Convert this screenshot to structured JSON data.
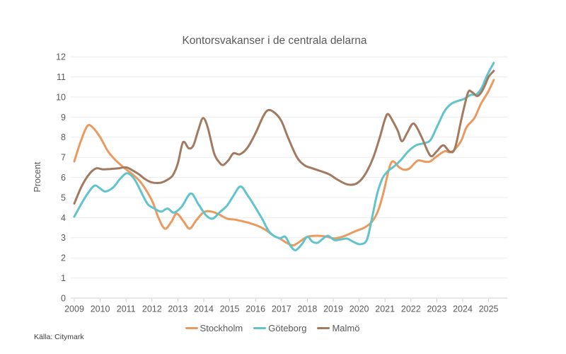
{
  "source_note": "Källa: Citymark",
  "chart_data": {
    "type": "line",
    "title": "Kontorsvakanser i de centrala delarna",
    "xlabel": "",
    "ylabel": "Procent",
    "ylim": [
      0,
      12
    ],
    "y_ticks": [
      0,
      1,
      2,
      3,
      4,
      5,
      6,
      7,
      8,
      9,
      10,
      11,
      12
    ],
    "x_ticks": [
      2009,
      2010,
      2011,
      2012,
      2013,
      2014,
      2015,
      2016,
      2017,
      2018,
      2019,
      2020,
      2021,
      2022,
      2023,
      2024,
      2025
    ],
    "grid": "horizontal",
    "legend_position": "bottom-center",
    "axis_color": "#cfcfcf",
    "gridline_color": "#ebebeb",
    "series": [
      {
        "name": "Stockholm",
        "color": "#EB9A5F",
        "points": [
          [
            2009.0,
            6.8
          ],
          [
            2009.25,
            7.8
          ],
          [
            2009.5,
            8.55
          ],
          [
            2009.7,
            8.5
          ],
          [
            2010.0,
            8.0
          ],
          [
            2010.3,
            7.3
          ],
          [
            2010.6,
            6.85
          ],
          [
            2011.0,
            6.4
          ],
          [
            2011.3,
            6.1
          ],
          [
            2011.6,
            5.7
          ],
          [
            2012.0,
            4.85
          ],
          [
            2012.25,
            4.0
          ],
          [
            2012.5,
            3.45
          ],
          [
            2012.75,
            3.8
          ],
          [
            2012.95,
            4.2
          ],
          [
            2013.2,
            3.85
          ],
          [
            2013.45,
            3.45
          ],
          [
            2013.7,
            3.85
          ],
          [
            2014.0,
            4.27
          ],
          [
            2014.3,
            4.3
          ],
          [
            2014.6,
            4.15
          ],
          [
            2014.9,
            3.95
          ],
          [
            2015.2,
            3.9
          ],
          [
            2015.5,
            3.82
          ],
          [
            2015.8,
            3.72
          ],
          [
            2016.1,
            3.58
          ],
          [
            2016.4,
            3.38
          ],
          [
            2016.7,
            3.1
          ],
          [
            2016.95,
            2.95
          ],
          [
            2017.2,
            2.75
          ],
          [
            2017.45,
            2.62
          ],
          [
            2017.7,
            2.8
          ],
          [
            2018.0,
            3.05
          ],
          [
            2018.4,
            3.1
          ],
          [
            2018.75,
            3.05
          ],
          [
            2019.05,
            2.97
          ],
          [
            2019.35,
            3.05
          ],
          [
            2019.6,
            3.18
          ],
          [
            2019.9,
            3.35
          ],
          [
            2020.2,
            3.5
          ],
          [
            2020.5,
            3.8
          ],
          [
            2020.75,
            4.4
          ],
          [
            2020.95,
            5.3
          ],
          [
            2021.15,
            6.4
          ],
          [
            2021.3,
            6.8
          ],
          [
            2021.55,
            6.5
          ],
          [
            2021.75,
            6.38
          ],
          [
            2021.95,
            6.45
          ],
          [
            2022.15,
            6.72
          ],
          [
            2022.3,
            6.85
          ],
          [
            2022.55,
            6.78
          ],
          [
            2022.75,
            6.8
          ],
          [
            2023.0,
            7.05
          ],
          [
            2023.3,
            7.3
          ],
          [
            2023.5,
            7.25
          ],
          [
            2023.7,
            7.4
          ],
          [
            2023.95,
            7.85
          ],
          [
            2024.15,
            8.5
          ],
          [
            2024.45,
            8.95
          ],
          [
            2024.7,
            9.65
          ],
          [
            2025.0,
            10.3
          ],
          [
            2025.2,
            10.85
          ]
        ]
      },
      {
        "name": "Göteborg",
        "color": "#61C3CB",
        "points": [
          [
            2009.0,
            4.05
          ],
          [
            2009.3,
            4.75
          ],
          [
            2009.6,
            5.35
          ],
          [
            2009.8,
            5.6
          ],
          [
            2010.0,
            5.45
          ],
          [
            2010.2,
            5.3
          ],
          [
            2010.5,
            5.5
          ],
          [
            2010.75,
            5.9
          ],
          [
            2011.0,
            6.2
          ],
          [
            2011.2,
            6.1
          ],
          [
            2011.4,
            5.75
          ],
          [
            2011.65,
            5.1
          ],
          [
            2011.85,
            4.65
          ],
          [
            2012.1,
            4.45
          ],
          [
            2012.35,
            4.3
          ],
          [
            2012.6,
            4.45
          ],
          [
            2012.85,
            4.25
          ],
          [
            2013.15,
            4.55
          ],
          [
            2013.5,
            5.2
          ],
          [
            2013.8,
            4.65
          ],
          [
            2014.1,
            4.1
          ],
          [
            2014.35,
            3.95
          ],
          [
            2014.6,
            4.25
          ],
          [
            2014.9,
            4.6
          ],
          [
            2015.15,
            5.1
          ],
          [
            2015.42,
            5.55
          ],
          [
            2015.7,
            5.1
          ],
          [
            2015.95,
            4.6
          ],
          [
            2016.25,
            3.95
          ],
          [
            2016.5,
            3.35
          ],
          [
            2016.7,
            3.1
          ],
          [
            2016.95,
            2.98
          ],
          [
            2017.15,
            3.05
          ],
          [
            2017.35,
            2.6
          ],
          [
            2017.55,
            2.38
          ],
          [
            2017.8,
            2.7
          ],
          [
            2018.0,
            3.05
          ],
          [
            2018.2,
            2.8
          ],
          [
            2018.4,
            2.75
          ],
          [
            2018.6,
            2.95
          ],
          [
            2018.8,
            3.1
          ],
          [
            2019.05,
            2.88
          ],
          [
            2019.3,
            2.92
          ],
          [
            2019.55,
            2.95
          ],
          [
            2019.8,
            2.78
          ],
          [
            2020.05,
            2.68
          ],
          [
            2020.3,
            2.9
          ],
          [
            2020.5,
            4.0
          ],
          [
            2020.7,
            5.2
          ],
          [
            2020.9,
            5.95
          ],
          [
            2021.1,
            6.3
          ],
          [
            2021.35,
            6.55
          ],
          [
            2021.6,
            6.85
          ],
          [
            2021.9,
            7.3
          ],
          [
            2022.2,
            7.6
          ],
          [
            2022.5,
            7.7
          ],
          [
            2022.75,
            7.85
          ],
          [
            2023.0,
            8.5
          ],
          [
            2023.3,
            9.3
          ],
          [
            2023.55,
            9.65
          ],
          [
            2023.8,
            9.8
          ],
          [
            2024.05,
            9.9
          ],
          [
            2024.3,
            10.1
          ],
          [
            2024.55,
            10.15
          ],
          [
            2024.75,
            10.5
          ],
          [
            2024.95,
            11.1
          ],
          [
            2025.2,
            11.7
          ]
        ]
      },
      {
        "name": "Malmö",
        "color": "#A17A60",
        "points": [
          [
            2009.0,
            4.7
          ],
          [
            2009.3,
            5.6
          ],
          [
            2009.6,
            6.2
          ],
          [
            2009.85,
            6.45
          ],
          [
            2010.1,
            6.4
          ],
          [
            2010.4,
            6.42
          ],
          [
            2010.7,
            6.45
          ],
          [
            2011.0,
            6.5
          ],
          [
            2011.25,
            6.35
          ],
          [
            2011.5,
            6.15
          ],
          [
            2011.75,
            5.9
          ],
          [
            2012.0,
            5.75
          ],
          [
            2012.3,
            5.73
          ],
          [
            2012.55,
            5.85
          ],
          [
            2012.8,
            6.1
          ],
          [
            2013.0,
            6.7
          ],
          [
            2013.2,
            7.75
          ],
          [
            2013.42,
            7.45
          ],
          [
            2013.6,
            7.6
          ],
          [
            2013.8,
            8.4
          ],
          [
            2013.97,
            8.95
          ],
          [
            2014.15,
            8.5
          ],
          [
            2014.4,
            7.2
          ],
          [
            2014.6,
            6.75
          ],
          [
            2014.75,
            6.62
          ],
          [
            2014.95,
            6.85
          ],
          [
            2015.15,
            7.2
          ],
          [
            2015.4,
            7.15
          ],
          [
            2015.7,
            7.5
          ],
          [
            2016.0,
            8.2
          ],
          [
            2016.3,
            9.05
          ],
          [
            2016.5,
            9.35
          ],
          [
            2016.75,
            9.2
          ],
          [
            2017.0,
            8.8
          ],
          [
            2017.25,
            8.0
          ],
          [
            2017.6,
            7.0
          ],
          [
            2017.9,
            6.6
          ],
          [
            2018.2,
            6.45
          ],
          [
            2018.55,
            6.3
          ],
          [
            2018.85,
            6.15
          ],
          [
            2019.15,
            5.9
          ],
          [
            2019.5,
            5.67
          ],
          [
            2019.8,
            5.65
          ],
          [
            2020.05,
            5.85
          ],
          [
            2020.3,
            6.3
          ],
          [
            2020.55,
            7.0
          ],
          [
            2020.8,
            8.0
          ],
          [
            2021.0,
            8.9
          ],
          [
            2021.12,
            9.15
          ],
          [
            2021.3,
            8.8
          ],
          [
            2021.5,
            8.3
          ],
          [
            2021.65,
            7.8
          ],
          [
            2021.85,
            8.2
          ],
          [
            2022.05,
            8.65
          ],
          [
            2022.2,
            8.55
          ],
          [
            2022.45,
            7.9
          ],
          [
            2022.65,
            7.3
          ],
          [
            2022.8,
            7.05
          ],
          [
            2023.0,
            7.3
          ],
          [
            2023.25,
            7.6
          ],
          [
            2023.5,
            7.28
          ],
          [
            2023.7,
            7.45
          ],
          [
            2023.95,
            8.9
          ],
          [
            2024.2,
            10.2
          ],
          [
            2024.35,
            10.25
          ],
          [
            2024.55,
            10.05
          ],
          [
            2024.7,
            10.2
          ],
          [
            2024.85,
            10.55
          ],
          [
            2025.0,
            11.0
          ],
          [
            2025.2,
            11.3
          ]
        ]
      }
    ]
  }
}
